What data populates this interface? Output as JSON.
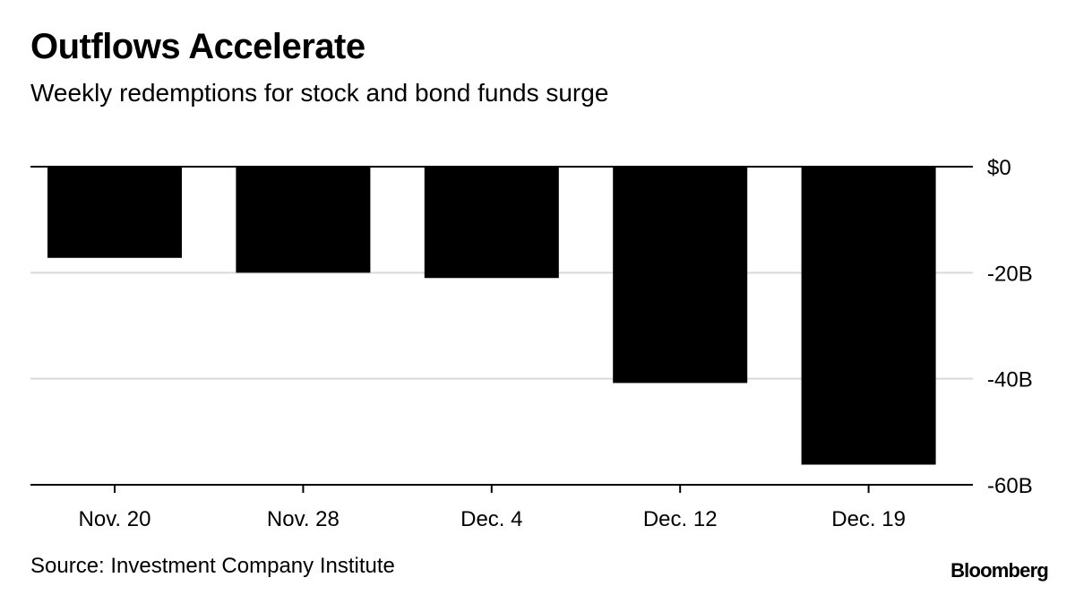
{
  "chart_data": {
    "type": "bar",
    "title": "Outflows Accelerate",
    "subtitle": "Weekly redemptions for stock and bond funds surge",
    "categories": [
      "Nov. 20",
      "Nov. 28",
      "Dec. 4",
      "Dec. 12",
      "Dec. 19"
    ],
    "values": [
      -17.2,
      -20.0,
      -21.0,
      -40.8,
      -56.2
    ],
    "units": "billions of USD",
    "ylim": [
      -60,
      0
    ],
    "yticks": [
      {
        "value": 0,
        "label": "$0"
      },
      {
        "value": -20,
        "label": "-20B"
      },
      {
        "value": -40,
        "label": "-40B"
      },
      {
        "value": -60,
        "label": "-60B"
      }
    ],
    "ytick_position": "right",
    "xlabel": "",
    "ylabel": "",
    "grid": true,
    "bar_color": "#000000",
    "grid_color": "#d9d9d9",
    "source": "Source: Investment Company Institute",
    "brand": "Bloomberg"
  }
}
